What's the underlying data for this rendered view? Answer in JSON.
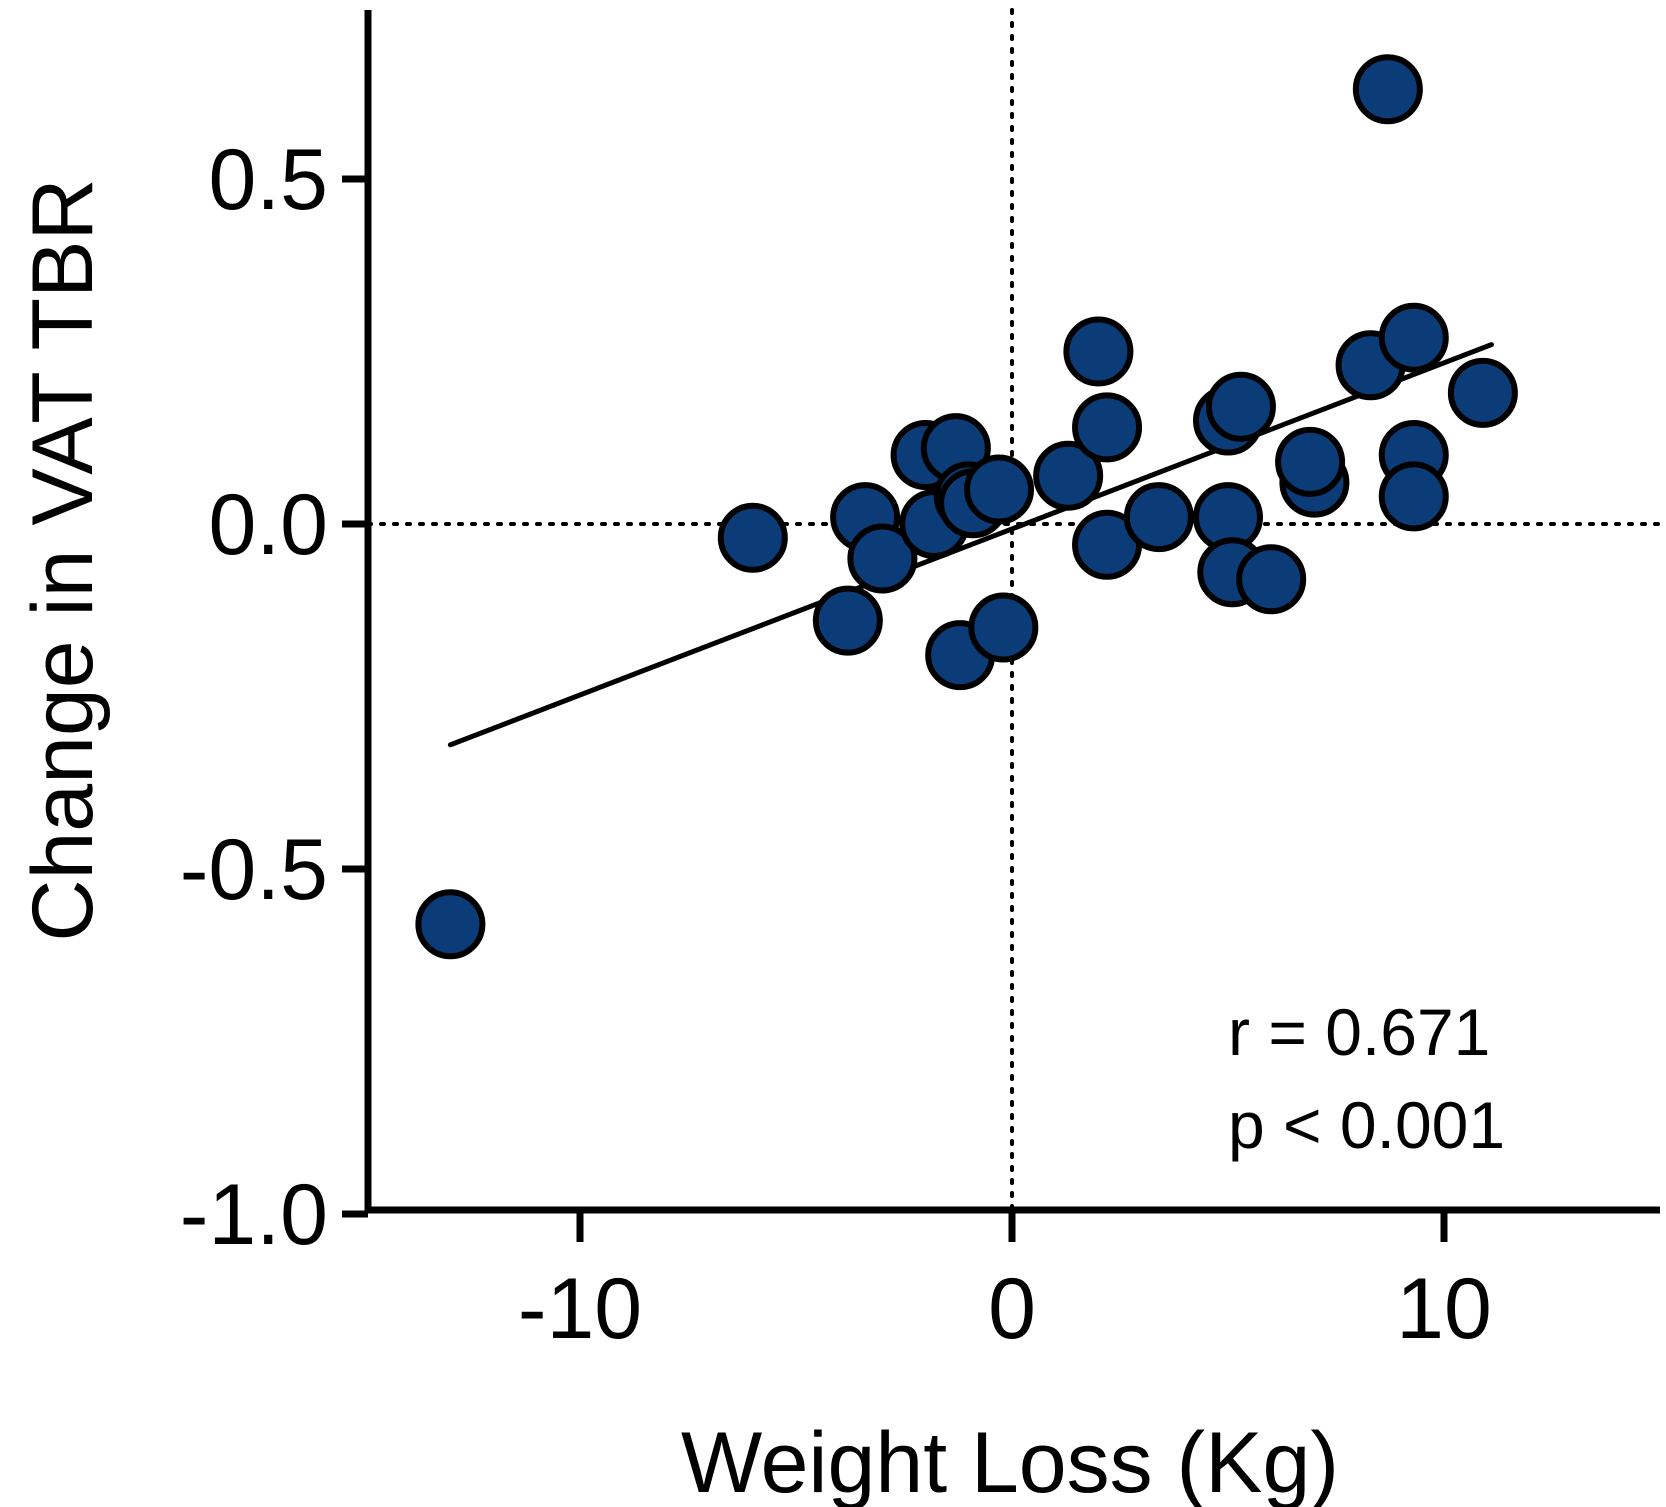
{
  "chart_data": {
    "type": "scatter",
    "title": "",
    "xlabel": "Weight Loss (Kg)",
    "ylabel": "Change in VAT TBR",
    "xlim": [
      -15,
      15
    ],
    "ylim": [
      -1.0,
      0.75
    ],
    "x_ticks": [
      {
        "value": -10,
        "label": "-10"
      },
      {
        "value": 0,
        "label": "0"
      },
      {
        "value": 10,
        "label": "10"
      }
    ],
    "y_ticks": [
      {
        "value": -1.0,
        "label": "-1.0"
      },
      {
        "value": -0.5,
        "label": "-0.5"
      },
      {
        "value": 0.0,
        "label": "0.0"
      },
      {
        "value": 0.5,
        "label": "0.5"
      }
    ],
    "reference_lines": {
      "x": 0,
      "y": 0,
      "style": "dotted"
    },
    "regression_line": {
      "x": [
        -13,
        11.1
      ],
      "y": [
        -0.32,
        0.26
      ]
    },
    "annotations": {
      "r": "r = 0.671",
      "p": "p < 0.001"
    },
    "grid": false,
    "marker_color": "#0b3c78",
    "marker_edge_color": "#000000",
    "series": [
      {
        "points": [
          {
            "x": -13.0,
            "y": -0.58
          },
          {
            "x": -6.0,
            "y": -0.02
          },
          {
            "x": -3.8,
            "y": -0.14
          },
          {
            "x": -3.4,
            "y": 0.01
          },
          {
            "x": -3.0,
            "y": -0.05
          },
          {
            "x": -2.0,
            "y": 0.1
          },
          {
            "x": -1.8,
            "y": 0.0
          },
          {
            "x": -1.3,
            "y": 0.11
          },
          {
            "x": -1.2,
            "y": -0.19
          },
          {
            "x": -1.0,
            "y": 0.04
          },
          {
            "x": -0.9,
            "y": 0.03
          },
          {
            "x": -0.3,
            "y": 0.05
          },
          {
            "x": -0.2,
            "y": -0.15
          },
          {
            "x": 1.3,
            "y": 0.07
          },
          {
            "x": 2.0,
            "y": 0.25
          },
          {
            "x": 2.2,
            "y": 0.14
          },
          {
            "x": 2.2,
            "y": -0.03
          },
          {
            "x": 3.4,
            "y": 0.01
          },
          {
            "x": 5.0,
            "y": 0.15
          },
          {
            "x": 5.0,
            "y": 0.01
          },
          {
            "x": 5.1,
            "y": -0.07
          },
          {
            "x": 5.3,
            "y": 0.17
          },
          {
            "x": 6.0,
            "y": -0.08
          },
          {
            "x": 7.0,
            "y": 0.06
          },
          {
            "x": 6.9,
            "y": 0.09
          },
          {
            "x": 8.3,
            "y": 0.23
          },
          {
            "x": 8.7,
            "y": 0.63
          },
          {
            "x": 9.3,
            "y": 0.27
          },
          {
            "x": 9.3,
            "y": 0.1
          },
          {
            "x": 9.3,
            "y": 0.04
          },
          {
            "x": 10.9,
            "y": 0.19
          }
        ]
      }
    ]
  }
}
